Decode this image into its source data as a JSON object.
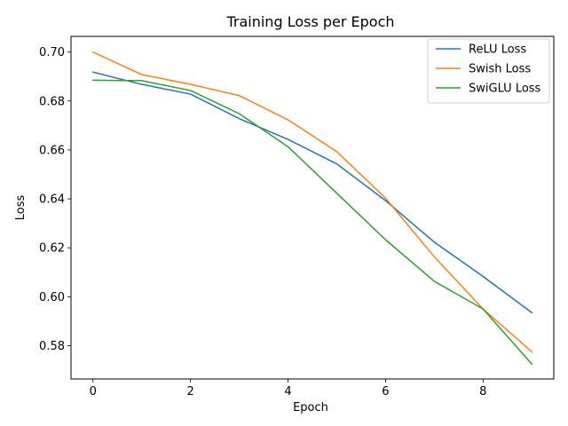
{
  "chart_data": {
    "type": "line",
    "title": "Training Loss per Epoch",
    "xlabel": "Epoch",
    "ylabel": "Loss",
    "x": [
      0,
      1,
      2,
      3,
      4,
      5,
      6,
      7,
      8,
      9
    ],
    "xlim": [
      -0.45,
      9.45
    ],
    "ylim": [
      0.5664,
      0.7064
    ],
    "xticks": [
      0,
      2,
      4,
      6,
      8
    ],
    "xtick_labels": [
      "0",
      "2",
      "4",
      "6",
      "8"
    ],
    "yticks": [
      0.58,
      0.6,
      0.62,
      0.64,
      0.66,
      0.68,
      0.7
    ],
    "ytick_labels": [
      "0.58",
      "0.60",
      "0.62",
      "0.64",
      "0.66",
      "0.68",
      "0.70"
    ],
    "grid": false,
    "legend_position": "top-right",
    "series": [
      {
        "name": "ReLU Loss",
        "color": "#1f77b4",
        "values": [
          0.6918,
          0.6868,
          0.6828,
          0.6728,
          0.6643,
          0.6543,
          0.6393,
          0.6223,
          0.6083,
          0.5935
        ]
      },
      {
        "name": "Swish Loss",
        "color": "#ff7f0e",
        "values": [
          0.7,
          0.6908,
          0.6868,
          0.6822,
          0.6723,
          0.6593,
          0.6403,
          0.6163,
          0.595,
          0.5775
        ]
      },
      {
        "name": "SwiGLU Loss",
        "color": "#2ca02c",
        "values": [
          0.6885,
          0.6883,
          0.6843,
          0.6748,
          0.6613,
          0.6423,
          0.6233,
          0.6063,
          0.595,
          0.5725
        ]
      }
    ]
  }
}
